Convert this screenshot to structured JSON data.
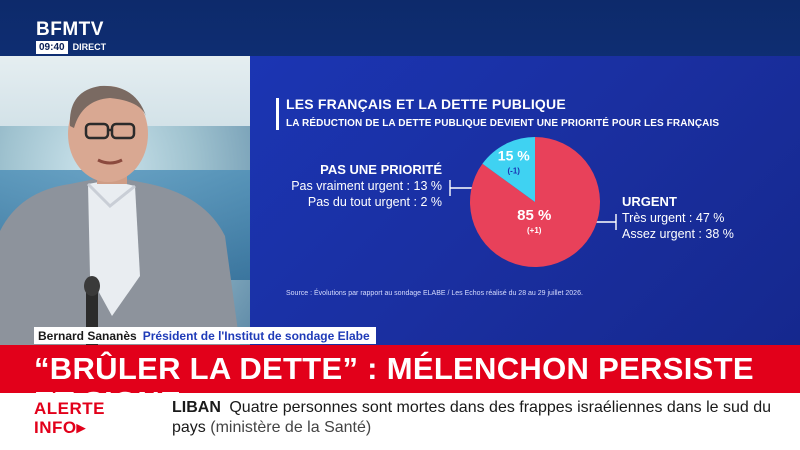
{
  "logo": {
    "brand": "BFMTV",
    "time": "09:40",
    "live": "DIRECT"
  },
  "chart": {
    "title": "LES FRANÇAIS ET LA DETTE PUBLIQUE",
    "subtitle": "LA RÉDUCTION DE LA DETTE PUBLIQUE DEVIENT UNE PRIORITÉ POUR LES FRANÇAIS",
    "source": "Source : Évolutions par rapport au sondage ELABE / Les Echos réalisé du 28 au 29 juillet 2026.",
    "not_priority": {
      "heading": "PAS UNE PRIORITÉ",
      "line1": "Pas vraiment urgent : 13 %",
      "line2": "Pas du tout urgent : 2 %"
    },
    "urgent": {
      "heading": "URGENT",
      "line1": "Très urgent : 47 %",
      "line2": "Assez urgent : 38 %"
    },
    "colors": {
      "urgent": "#e8415a",
      "not_priority": "#3fd2f2"
    }
  },
  "chart_data": {
    "type": "pie",
    "title": "LES FRANÇAIS ET LA DETTE PUBLIQUE",
    "slices": [
      {
        "label": "Urgent",
        "value": 85,
        "display": "85 %",
        "change": "(+1)",
        "color": "#e8415a"
      },
      {
        "label": "Pas une priorité",
        "value": 15,
        "display": "15 %",
        "change": "(-1)",
        "color": "#3fd2f2"
      }
    ]
  },
  "speaker": {
    "name": "Bernard Sananès",
    "role": "Président de l'Institut de sondage Elabe"
  },
  "headline": "“BRÛLER LA DETTE” : MÉLENCHON PERSISTE ET SIGNE",
  "alert": {
    "label_line1": "ALERTE",
    "label_line2": "INFO",
    "tag": "LIBAN",
    "text": "Quatre personnes sont mortes dans des frappes israéliennes dans le sud du pays",
    "source": "(ministère de la Santé)"
  }
}
